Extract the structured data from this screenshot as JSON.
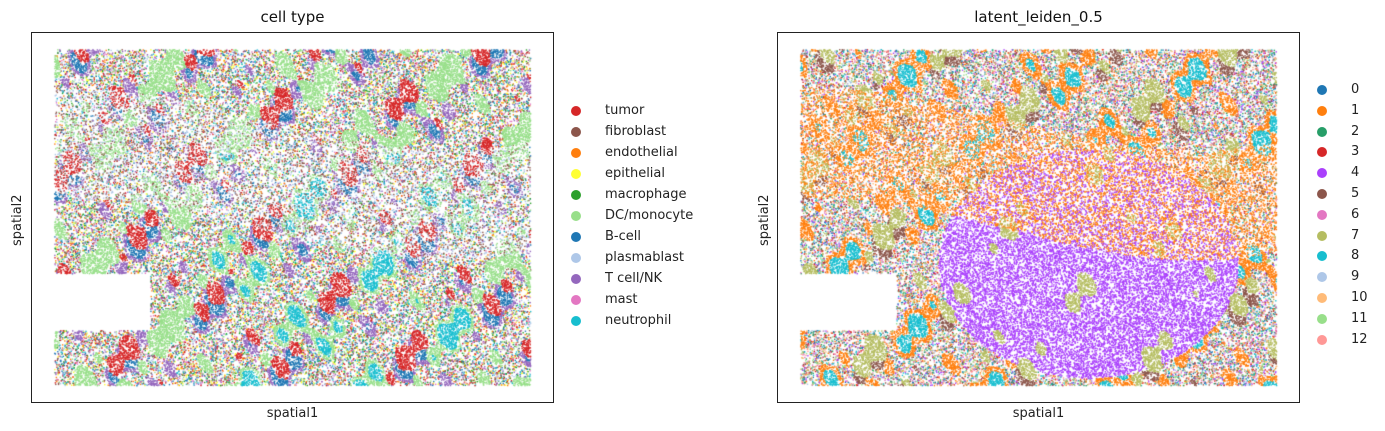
{
  "chart_data": [
    {
      "type": "scatter",
      "title": "cell type",
      "xlabel": "spatial1",
      "ylabel": "spatial2",
      "legend_position": "right",
      "series": [
        {
          "name": "tumor",
          "color": "#d62728"
        },
        {
          "name": "fibroblast",
          "color": "#8c564b"
        },
        {
          "name": "endothelial",
          "color": "#ff7f0e"
        },
        {
          "name": "epithelial",
          "color": "#ffff33"
        },
        {
          "name": "macrophage",
          "color": "#2ca02c"
        },
        {
          "name": "DC/monocyte",
          "color": "#98df8a"
        },
        {
          "name": "B-cell",
          "color": "#1f77b4"
        },
        {
          "name": "plasmablast",
          "color": "#aec7e8"
        },
        {
          "name": "T cell/NK",
          "color": "#9467bd"
        },
        {
          "name": "mast",
          "color": "#e377c2"
        },
        {
          "name": "neutrophil",
          "color": "#17becf"
        }
      ]
    },
    {
      "type": "scatter",
      "title": "latent_leiden_0.5",
      "xlabel": "spatial1",
      "ylabel": "spatial2",
      "legend_position": "right",
      "series": [
        {
          "name": "0",
          "color": "#1f77b4"
        },
        {
          "name": "1",
          "color": "#ff7f0e"
        },
        {
          "name": "2",
          "color": "#279e68"
        },
        {
          "name": "3",
          "color": "#d62728"
        },
        {
          "name": "4",
          "color": "#aa40fc"
        },
        {
          "name": "5",
          "color": "#8c564b"
        },
        {
          "name": "6",
          "color": "#e377c2"
        },
        {
          "name": "7",
          "color": "#b5bd61"
        },
        {
          "name": "8",
          "color": "#17becf"
        },
        {
          "name": "9",
          "color": "#aec7e8"
        },
        {
          "name": "10",
          "color": "#ffbb78"
        },
        {
          "name": "11",
          "color": "#98df8a"
        },
        {
          "name": "12",
          "color": "#ff9896"
        }
      ]
    }
  ]
}
